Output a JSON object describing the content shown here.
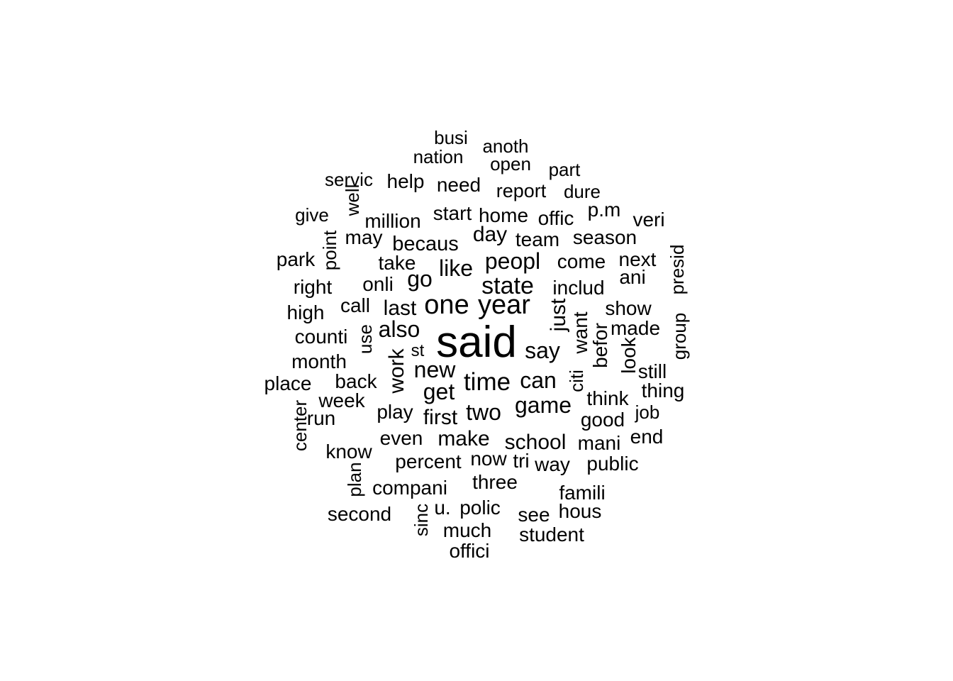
{
  "word_cloud": {
    "words": [
      "said",
      "one",
      "year",
      "state",
      "peopl",
      "new",
      "time",
      "get",
      "say",
      "can",
      "also",
      "like",
      "go",
      "last",
      "first",
      "two",
      "game",
      "make",
      "school",
      "work",
      "just",
      "want",
      "includ",
      "busi",
      "anoth",
      "nation",
      "open",
      "part",
      "servic",
      "help",
      "need",
      "report",
      "dure",
      "give",
      "well",
      "million",
      "start",
      "home",
      "offic",
      "p.m",
      "veri",
      "point",
      "may",
      "day",
      "team",
      "season",
      "park",
      "becaus",
      "take",
      "come",
      "next",
      "presid",
      "ani",
      "right",
      "onli",
      "high",
      "call",
      "show",
      "counti",
      "use",
      "made",
      "befor",
      "group",
      "citi",
      "st",
      "month",
      "look",
      "still",
      "place",
      "back",
      "think",
      "thing",
      "week",
      "play",
      "center",
      "run",
      "job",
      "good",
      "even",
      "end",
      "know",
      "mani",
      "percent",
      "now",
      "tri",
      "way",
      "public",
      "plan",
      "three",
      "compani",
      "famili",
      "second",
      "u.",
      "polic",
      "see",
      "hous",
      "sinc",
      "much",
      "student",
      "offici"
    ]
  }
}
